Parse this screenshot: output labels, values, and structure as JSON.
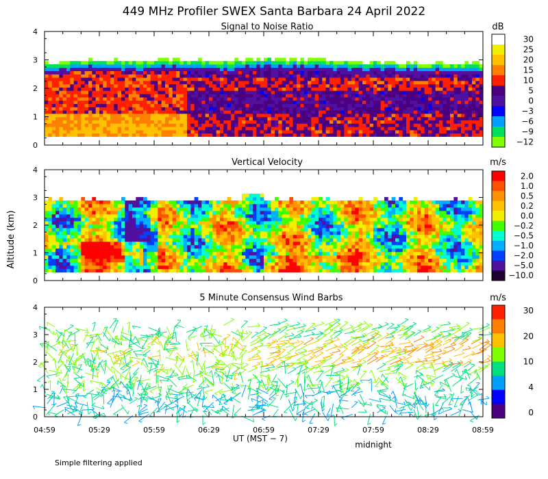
{
  "chart_data": [
    {
      "type": "heatmap",
      "title": "449 MHz Profiler SWEX Santa Barbara 24 April 2022",
      "subtitle": "Signal to Noise Ratio",
      "ylabel": "",
      "ylim": [
        0,
        4
      ],
      "y_ticks": [
        0,
        1,
        2,
        3,
        4
      ],
      "x_ticks": [
        "04:59",
        "05:29",
        "05:59",
        "06:29",
        "06:59",
        "07:29",
        "07:59",
        "08:29",
        "08:59"
      ],
      "colorbar_unit": "dB",
      "colorbar_labels": [
        "30",
        "25",
        "20",
        "15",
        "10",
        "5",
        "0",
        "−3",
        "−6",
        "−9",
        "−12"
      ],
      "colorbar_colors": [
        "#ffffff",
        "#f0f000",
        "#ffc000",
        "#ff8000",
        "#ff2000",
        "#4b0082",
        "#5010a0",
        "#0000ff",
        "#00a0ff",
        "#00e060",
        "#80ff00"
      ],
      "echo_top_km": [
        2.85,
        2.95,
        2.9,
        2.95,
        2.9,
        3.0,
        2.95,
        2.9,
        2.85,
        2.85,
        2.8
      ]
    },
    {
      "type": "heatmap",
      "subtitle": "Vertical Velocity",
      "ylabel": "Altitude (km)",
      "ylim": [
        0,
        4
      ],
      "y_ticks": [
        0,
        1,
        2,
        3,
        4
      ],
      "colorbar_unit": "m/s",
      "colorbar_labels": [
        "2.0",
        "1.0",
        "0.5",
        "0.2",
        "0.0",
        "−0.2",
        "−0.5",
        "−1.0",
        "−2.0",
        "−5.0",
        "−10.0"
      ],
      "colorbar_colors": [
        "#ff0000",
        "#ff5000",
        "#ff9000",
        "#ffc000",
        "#f0f000",
        "#40ff00",
        "#00ffd0",
        "#00b0ff",
        "#0040ff",
        "#5010a0",
        "#200030"
      ]
    },
    {
      "type": "scatter",
      "subtitle": "5 Minute Consensus Wind Barbs",
      "ylabel": "",
      "ylim": [
        0,
        4
      ],
      "y_ticks": [
        0,
        1,
        2,
        3,
        4
      ],
      "colorbar_unit": "m/s",
      "colorbar_labels": [
        "30",
        "20",
        "10",
        "4",
        "0"
      ],
      "colorbar_colors": [
        "#ff2000",
        "#ff8000",
        "#ffc000",
        "#80ff00",
        "#00e080",
        "#00a0ff",
        "#0000ff",
        "#4b0082"
      ]
    }
  ],
  "footer": {
    "xlabel": "UT  (MST − 7)",
    "midnight": "midnight",
    "note": "Simple filtering applied"
  }
}
